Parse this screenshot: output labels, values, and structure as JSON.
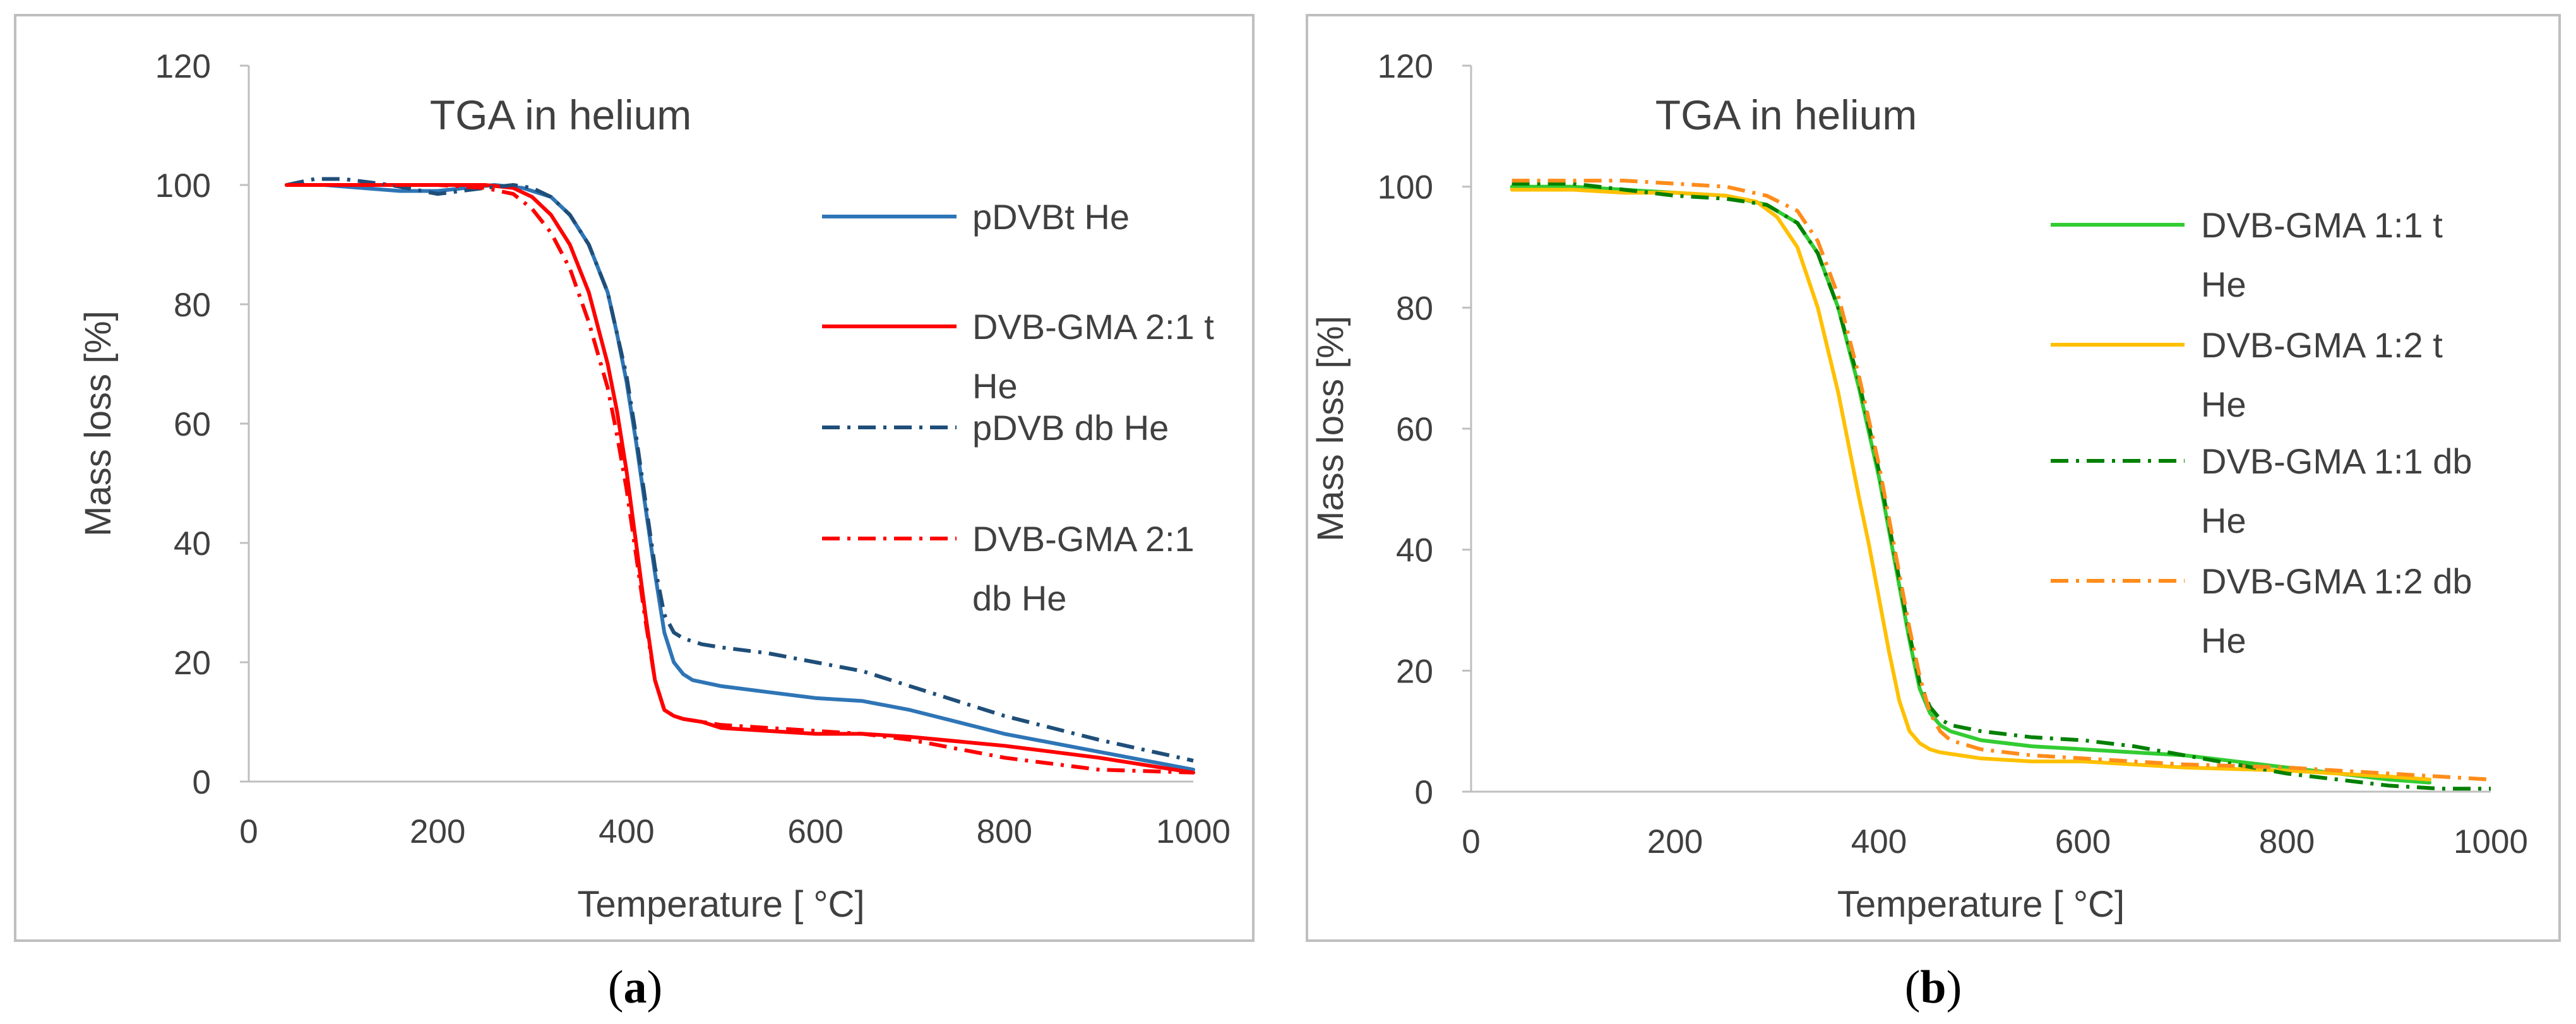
{
  "chart_data": [
    {
      "panel_label": "a",
      "type": "line",
      "title": "TGA in helium",
      "xlabel": "Temperature [ °C]",
      "ylabel": "Mass loss [%]",
      "xlim": [
        0,
        1000
      ],
      "ylim": [
        0,
        120
      ],
      "x_ticks": [
        "0",
        "200",
        "400",
        "600",
        "800",
        "1000"
      ],
      "y_ticks": [
        "0",
        "20",
        "40",
        "60",
        "80",
        "100",
        "120"
      ],
      "grid": false,
      "legend_position": "right",
      "series": [
        {
          "name": "pDVBt He",
          "legend_lines": [
            "pDVBt He"
          ],
          "color": "#2e75b6",
          "dash": "solid",
          "x": [
            40,
            80,
            120,
            160,
            200,
            230,
            260,
            290,
            320,
            340,
            360,
            380,
            390,
            400,
            410,
            420,
            430,
            440,
            450,
            460,
            470,
            500,
            550,
            600,
            650,
            700,
            800,
            900,
            1000
          ],
          "y": [
            100,
            100,
            99.5,
            99,
            99,
            99.5,
            100,
            99.5,
            98,
            95,
            90,
            82,
            75,
            67,
            57,
            46,
            35,
            25,
            20,
            18,
            17,
            16,
            15,
            14,
            13.5,
            12,
            8,
            5,
            2
          ]
        },
        {
          "name": "DVB-GMA 2:1 t He",
          "legend_lines": [
            "DVB-GMA 2:1 t",
            "He"
          ],
          "color": "#ff0000",
          "dash": "solid",
          "x": [
            40,
            100,
            150,
            200,
            250,
            280,
            300,
            320,
            340,
            360,
            380,
            390,
            400,
            410,
            420,
            430,
            440,
            450,
            460,
            480,
            500,
            550,
            600,
            650,
            700,
            800,
            900,
            1000
          ],
          "y": [
            100,
            100,
            100,
            100,
            100,
            99.5,
            98,
            95,
            90,
            82,
            70,
            62,
            52,
            40,
            28,
            17,
            12,
            11,
            10.5,
            10,
            9,
            8.5,
            8,
            8,
            7.5,
            6,
            4,
            1.5
          ]
        },
        {
          "name": "pDVB db He",
          "legend_lines": [
            "pDVB db He"
          ],
          "color": "#1f4e79",
          "dash": "dashdot",
          "x": [
            40,
            70,
            100,
            150,
            200,
            250,
            280,
            300,
            320,
            340,
            360,
            380,
            400,
            410,
            420,
            430,
            440,
            450,
            460,
            480,
            500,
            550,
            600,
            650,
            700,
            800,
            900,
            1000
          ],
          "y": [
            100,
            101,
            101,
            100,
            98.5,
            99.5,
            100,
            99.5,
            98,
            95,
            90,
            82,
            68,
            58,
            47,
            36,
            28,
            25,
            24,
            23,
            22.5,
            21.5,
            20,
            18.5,
            16,
            11,
            7,
            3.5
          ]
        },
        {
          "name": "DVB-GMA 2:1 db He",
          "legend_lines": [
            "DVB-GMA 2:1",
            "db He"
          ],
          "color": "#ff0000",
          "dash": "dashdot",
          "x": [
            40,
            100,
            150,
            200,
            250,
            280,
            300,
            320,
            340,
            360,
            380,
            390,
            400,
            410,
            420,
            430,
            440,
            450,
            460,
            480,
            500,
            550,
            600,
            650,
            700,
            800,
            900,
            1000
          ],
          "y": [
            100,
            100,
            100,
            100,
            99.5,
            98.5,
            96,
            92,
            86,
            77,
            66,
            58,
            49,
            38,
            27,
            17,
            12,
            11,
            10.5,
            10,
            9.5,
            9,
            8.5,
            8,
            7,
            4,
            2,
            1.5
          ]
        }
      ]
    },
    {
      "panel_label": "b",
      "type": "line",
      "title": "TGA in helium",
      "xlabel": "Temperature [ °C]",
      "ylabel": "Mass loss [%]",
      "xlim": [
        0,
        1000
      ],
      "ylim": [
        0,
        120
      ],
      "x_ticks": [
        "0",
        "200",
        "400",
        "600",
        "800",
        "1000"
      ],
      "y_ticks": [
        "0",
        "20",
        "40",
        "60",
        "80",
        "100",
        "120"
      ],
      "grid": false,
      "legend_position": "right",
      "series": [
        {
          "name": "DVB-GMA 1:1 t He",
          "legend_lines": [
            "DVB-GMA 1:1 t",
            "He"
          ],
          "color": "#33cc33",
          "dash": "solid",
          "x": [
            40,
            100,
            150,
            200,
            250,
            290,
            320,
            340,
            360,
            380,
            400,
            410,
            420,
            430,
            440,
            450,
            460,
            470,
            500,
            550,
            600,
            650,
            700,
            800,
            900,
            940
          ],
          "y": [
            100,
            100,
            99.5,
            99,
            98.5,
            97,
            94,
            89,
            80,
            67,
            52,
            43,
            34,
            25,
            17,
            13,
            11,
            10,
            8.5,
            7.5,
            7,
            6.5,
            6,
            4,
            2,
            1.5
          ]
        },
        {
          "name": "DVB-GMA 1:2 t He",
          "legend_lines": [
            "DVB-GMA 1:2 t",
            "He"
          ],
          "color": "#ffc000",
          "dash": "solid",
          "x": [
            40,
            100,
            150,
            200,
            250,
            280,
            300,
            320,
            340,
            360,
            380,
            390,
            400,
            410,
            420,
            430,
            440,
            450,
            460,
            480,
            500,
            550,
            600,
            650,
            700,
            800,
            900,
            940
          ],
          "y": [
            99.5,
            99.5,
            99,
            99,
            98.5,
            97.5,
            95,
            90,
            80,
            66,
            49,
            41,
            32,
            23,
            15,
            10,
            8,
            7,
            6.5,
            6,
            5.5,
            5,
            5,
            4.5,
            4,
            3.5,
            2.5,
            2
          ]
        },
        {
          "name": "DVB-GMA 1:1 db He",
          "legend_lines": [
            "DVB-GMA 1:1 db",
            "He"
          ],
          "color": "#008000",
          "dash": "dashdot",
          "x": [
            40,
            100,
            150,
            200,
            250,
            290,
            320,
            340,
            360,
            380,
            400,
            410,
            420,
            430,
            440,
            450,
            460,
            470,
            500,
            550,
            600,
            650,
            700,
            750,
            800,
            850,
            900,
            950,
            1000
          ],
          "y": [
            100.5,
            100.5,
            99.5,
            98.5,
            98,
            97,
            94,
            89,
            80,
            68,
            53,
            44,
            35,
            26,
            18,
            14,
            12,
            11,
            10,
            9,
            8.5,
            7.5,
            6,
            4.5,
            3,
            2,
            1,
            0.5,
            0.5
          ]
        },
        {
          "name": "DVB-GMA 1:2 db He",
          "legend_lines": [
            "DVB-GMA 1:2 db",
            "He"
          ],
          "color": "#ff8c1a",
          "dash": "dashdot",
          "x": [
            40,
            100,
            150,
            200,
            250,
            290,
            320,
            340,
            360,
            380,
            400,
            410,
            420,
            430,
            440,
            450,
            460,
            470,
            500,
            550,
            600,
            650,
            700,
            800,
            900,
            1000
          ],
          "y": [
            101,
            101,
            101,
            100.5,
            100,
            98.5,
            96,
            91,
            82,
            69,
            54,
            45,
            36,
            27,
            19,
            13,
            10,
            8.5,
            7,
            6,
            5.5,
            5,
            4.5,
            4,
            3,
            2
          ]
        }
      ]
    }
  ]
}
